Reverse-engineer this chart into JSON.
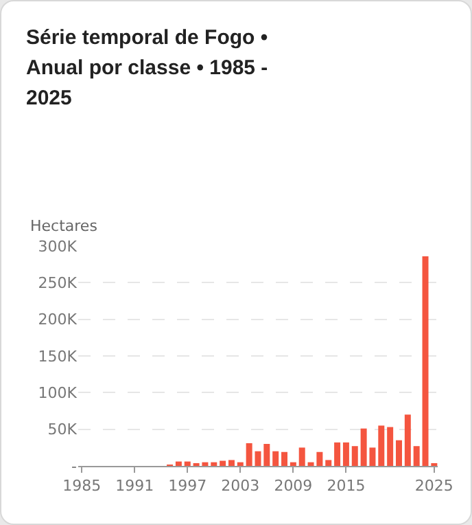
{
  "chart_data": {
    "type": "bar",
    "title": "Série temporal de Fogo • Anual por classe • 1985 - 2025",
    "ylabel": "Hectares",
    "color": "#f4553f",
    "x": [
      1985,
      1986,
      1987,
      1988,
      1989,
      1990,
      1991,
      1992,
      1993,
      1994,
      1995,
      1996,
      1997,
      1998,
      1999,
      2000,
      2001,
      2002,
      2003,
      2004,
      2005,
      2006,
      2007,
      2008,
      2009,
      2010,
      2011,
      2012,
      2013,
      2014,
      2015,
      2016,
      2017,
      2018,
      2019,
      2020,
      2021,
      2022,
      2023,
      2024,
      2025
    ],
    "values": [
      0,
      0,
      0,
      0,
      0,
      0,
      0,
      0,
      0,
      0,
      1000,
      6000,
      6000,
      2000,
      5000,
      5000,
      7000,
      8000,
      5000,
      31000,
      20000,
      30000,
      20000,
      19000,
      5000,
      25000,
      5000,
      19000,
      8000,
      32000,
      32000,
      27000,
      51000,
      25000,
      55000,
      53000,
      35000,
      70000,
      27000,
      286000,
      3000
    ],
    "xlim": [
      1984.6,
      2025.4
    ],
    "xticks": [
      1985,
      1991,
      1997,
      2003,
      2009,
      2015,
      2025
    ],
    "ylim": [
      0,
      300000
    ],
    "yticks": [
      {
        "value": 0,
        "label": "-"
      },
      {
        "value": 50000,
        "label": "50K"
      },
      {
        "value": 100000,
        "label": "100K"
      },
      {
        "value": 150000,
        "label": "150K"
      },
      {
        "value": 200000,
        "label": "200K"
      },
      {
        "value": 250000,
        "label": "250K"
      },
      {
        "value": 300000,
        "label": "300K"
      }
    ],
    "grid": "y"
  }
}
